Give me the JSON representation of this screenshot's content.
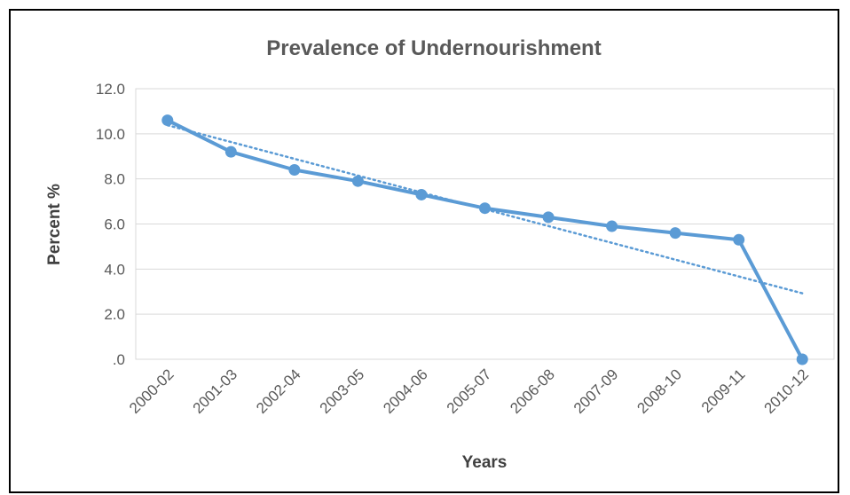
{
  "chart_data": {
    "type": "line",
    "title": "Prevalence of Undernourishment",
    "xlabel": "Years",
    "ylabel": "Percent %",
    "categories": [
      "2000-02",
      "2001-03",
      "2002-04",
      "2003-05",
      "2004-06",
      "2005-07",
      "2006-08",
      "2007-09",
      "2008-10",
      "2009-11",
      "2010-12"
    ],
    "series": [
      {
        "values": [
          10.6,
          9.2,
          8.4,
          7.9,
          7.3,
          6.7,
          6.3,
          5.9,
          5.6,
          5.3,
          0.0
        ],
        "color": "#5b9bd5",
        "markers": true
      }
    ],
    "trendline": {
      "type": "linear",
      "style": "dotted",
      "color": "#5b9bd5"
    },
    "ylim": [
      0,
      12
    ],
    "yticks": [
      0,
      2,
      4,
      6,
      8,
      10,
      12
    ],
    "ytick_labels": [
      ".0",
      "2.0",
      "4.0",
      "6.0",
      "8.0",
      "10.0",
      "12.0"
    ],
    "grid": true,
    "legend": "none"
  }
}
